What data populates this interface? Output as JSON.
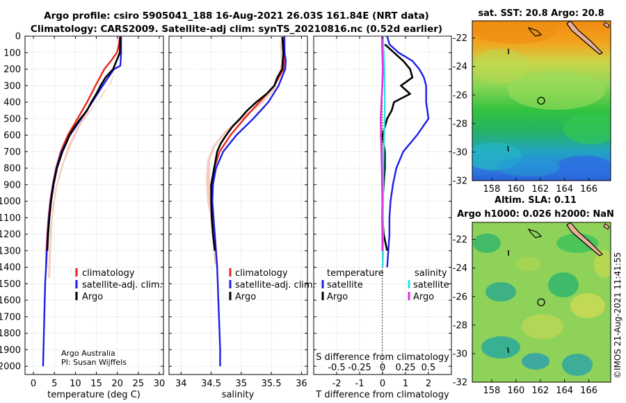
{
  "title": {
    "line1": "Argo profile: csiro 5905041_188 16-Aug-2021 26.03S 161.84E (NRT data)",
    "line2": "Climatology: CARS2009. Satellite-adj clim: synTS_20210816.nc (0.52d earlier)"
  },
  "credits": {
    "line1": "Argo Australia",
    "line2": "PI: Susan Wijffels"
  },
  "stamp": "©IMOS 21-Aug-2021 11:41:55",
  "colors": {
    "climatology": "#e8261a",
    "satellite": "#1c1ce6",
    "argo": "#000000",
    "sat_salinity": "#27e3e3",
    "argo_salinity": "#e22ee2",
    "envelope": "#f4b6a4",
    "land": "#e8b098"
  },
  "chart_data": [
    {
      "id": "temperature",
      "type": "line",
      "xlabel": "temperature (deg C)",
      "ylabel": "",
      "xlim": [
        -2,
        31
      ],
      "ylim": [
        2050,
        0
      ],
      "xticks": [
        0,
        5,
        10,
        15,
        20,
        25,
        30
      ],
      "yticks": [
        0,
        100,
        200,
        300,
        400,
        500,
        600,
        700,
        800,
        900,
        1000,
        1100,
        1200,
        1300,
        1400,
        1500,
        1600,
        1700,
        1800,
        1900,
        2000
      ],
      "legend": [
        "climatology",
        "satellite-adj. clim.",
        "Argo"
      ],
      "series": [
        {
          "name": "climatology",
          "color": "#e8261a",
          "depth": [
            0,
            50,
            100,
            150,
            200,
            300,
            400,
            500,
            600,
            700,
            800,
            900,
            1000,
            1100,
            1200,
            1300,
            1400
          ],
          "values": [
            20.6,
            20.4,
            19.9,
            18.5,
            16.9,
            14.8,
            12.8,
            10.5,
            8.2,
            6.5,
            5.4,
            4.6,
            4.0,
            3.6,
            3.3,
            3.1,
            3.0
          ]
        },
        {
          "name": "satellite-adj. clim.",
          "color": "#1c1ce6",
          "depth": [
            0,
            100,
            150,
            180,
            200,
            300,
            400,
            500,
            600,
            700,
            800,
            900,
            1000,
            1100,
            1200,
            1300,
            1400,
            1500,
            1600,
            1700,
            1800,
            1900,
            2000
          ],
          "values": [
            20.9,
            20.9,
            20.8,
            20.7,
            19.2,
            16.5,
            14.0,
            11.4,
            8.7,
            6.7,
            5.5,
            4.7,
            4.1,
            3.7,
            3.4,
            3.2,
            3.0,
            2.8,
            2.7,
            2.6,
            2.5,
            2.4,
            2.3
          ]
        },
        {
          "name": "Argo",
          "color": "#000000",
          "depth": [
            5,
            100,
            200,
            250,
            300,
            350,
            400,
            450,
            500,
            550,
            600,
            650,
            700,
            800,
            900,
            1000,
            1100,
            1200,
            1300
          ],
          "values": [
            20.7,
            20.6,
            19.0,
            17.2,
            16.0,
            15.0,
            13.8,
            12.8,
            11.2,
            9.8,
            8.6,
            7.8,
            6.9,
            5.6,
            4.8,
            4.2,
            3.8,
            3.5,
            3.3
          ]
        }
      ]
    },
    {
      "id": "salinity",
      "type": "line",
      "xlabel": "salinity",
      "xlim": [
        33.8,
        36.1
      ],
      "ylim": [
        2050,
        0
      ],
      "xticks": [
        34,
        34.5,
        35,
        35.5,
        36
      ],
      "legend": [
        "climatology",
        "satellite-adj. clim.",
        "Argo"
      ],
      "series": [
        {
          "name": "climatology",
          "color": "#e8261a",
          "depth": [
            0,
            100,
            200,
            300,
            400,
            500,
            600,
            700,
            800,
            900,
            1000,
            1100,
            1200,
            1300,
            1400
          ],
          "values": [
            35.72,
            35.72,
            35.7,
            35.55,
            35.3,
            35.05,
            34.82,
            34.64,
            34.55,
            34.51,
            34.51,
            34.53,
            34.56,
            34.58,
            34.6
          ]
        },
        {
          "name": "satellite-adj. clim.",
          "color": "#1c1ce6",
          "depth": [
            0,
            100,
            150,
            200,
            300,
            400,
            500,
            600,
            700,
            800,
            900,
            1000,
            1100,
            1200,
            1300,
            1400,
            1500,
            1600,
            1700,
            1800,
            1900,
            2000
          ],
          "values": [
            35.71,
            35.72,
            35.74,
            35.73,
            35.62,
            35.45,
            35.2,
            34.92,
            34.7,
            34.58,
            34.53,
            34.52,
            34.54,
            34.56,
            34.58,
            34.6,
            34.61,
            34.62,
            34.63,
            34.64,
            34.65,
            34.65
          ]
        },
        {
          "name": "Argo",
          "color": "#000000",
          "depth": [
            5,
            100,
            200,
            250,
            300,
            350,
            400,
            450,
            500,
            550,
            600,
            650,
            700,
            800,
            900,
            1000,
            1100,
            1200,
            1300
          ],
          "values": [
            35.68,
            35.7,
            35.68,
            35.6,
            35.55,
            35.42,
            35.25,
            35.1,
            34.98,
            34.85,
            34.75,
            34.66,
            34.6,
            34.55,
            34.5,
            34.5,
            34.51,
            34.53,
            34.56
          ]
        }
      ]
    },
    {
      "id": "differences",
      "type": "line",
      "xlabel": "T difference from climatology",
      "xlabel_top": "S difference from climatology",
      "xlim": [
        -3,
        3
      ],
      "ylim": [
        2050,
        0
      ],
      "xticks": [
        -2,
        -1,
        0,
        1,
        2
      ],
      "xticks_s": [
        "-0.5",
        "-0.25",
        "0",
        "0.25",
        "0.5"
      ],
      "legend_temperature": [
        "temperature",
        "satellite",
        "Argo"
      ],
      "legend_salinity": [
        "salinity",
        "satellite",
        "Argo"
      ],
      "series": [
        {
          "name": "T satellite",
          "color": "#1c1ce6",
          "depth": [
            0,
            50,
            100,
            150,
            200,
            250,
            300,
            400,
            500,
            600,
            700,
            800,
            900,
            1000,
            1100,
            1200,
            1300,
            1400
          ],
          "values": [
            0.2,
            0.3,
            0.7,
            1.3,
            1.6,
            1.8,
            1.9,
            1.9,
            2.0,
            1.5,
            0.9,
            0.6,
            0.45,
            0.35,
            0.3,
            0.3,
            0.25,
            0.2
          ]
        },
        {
          "name": "T Argo",
          "color": "#000000",
          "depth": [
            50,
            100,
            150,
            200,
            250,
            300,
            350,
            400,
            450,
            500,
            550,
            600,
            700,
            800,
            900,
            1000,
            1100,
            1200,
            1300
          ],
          "values": [
            0.1,
            0.5,
            0.9,
            1.2,
            1.3,
            0.8,
            1.2,
            0.5,
            0.4,
            0.2,
            0.1,
            0.0,
            0.1,
            0.1,
            0.05,
            0.0,
            0.0,
            0.05,
            0.2
          ]
        },
        {
          "name": "S satellite",
          "color": "#27e3e3",
          "depth": [
            0,
            50,
            100,
            200,
            300,
            400,
            500,
            600,
            700,
            800,
            900,
            1000,
            1100,
            1200,
            1300,
            1400
          ],
          "values": [
            0.02,
            0.03,
            0.05,
            0.08,
            0.09,
            0.1,
            0.09,
            0.07,
            0.05,
            0.04,
            0.03,
            0.02,
            0.02,
            0.02,
            0.02,
            0.01
          ]
        },
        {
          "name": "S Argo",
          "color": "#e22ee2",
          "depth": [
            0,
            50,
            100,
            200,
            300,
            400,
            500,
            600,
            700,
            800,
            900,
            1000,
            1100,
            1200,
            1300
          ],
          "values": [
            -0.02,
            -0.02,
            -0.01,
            0.01,
            -0.01,
            -0.05,
            -0.08,
            -0.07,
            -0.05,
            -0.03,
            -0.02,
            -0.01,
            -0.02,
            -0.01,
            -0.01
          ]
        }
      ]
    },
    {
      "id": "sst-map",
      "type": "heatmap",
      "title": "sat. SST: 20.8 Argo: 20.8",
      "xticks": [
        158,
        160,
        162,
        164,
        166
      ],
      "yticks": [
        -22,
        -24,
        -26,
        -28,
        -30,
        -32
      ],
      "xlim": [
        156.4,
        167.8
      ],
      "ylim": [
        -32,
        -20.8
      ],
      "float_position": {
        "lon": 161.84,
        "lat": -26.03
      }
    },
    {
      "id": "sla-map",
      "type": "heatmap",
      "title_line1": "Altim. SLA: 0.11",
      "title_line2": "Argo h1000: 0.026 h2000: NaN",
      "xticks": [
        158,
        160,
        162,
        164,
        166
      ],
      "yticks": [
        -22,
        -24,
        -26,
        -28,
        -30,
        -32
      ],
      "xlim": [
        156.4,
        167.8
      ],
      "ylim": [
        -32,
        -20.8
      ],
      "float_position": {
        "lon": 161.84,
        "lat": -26.03
      }
    }
  ]
}
